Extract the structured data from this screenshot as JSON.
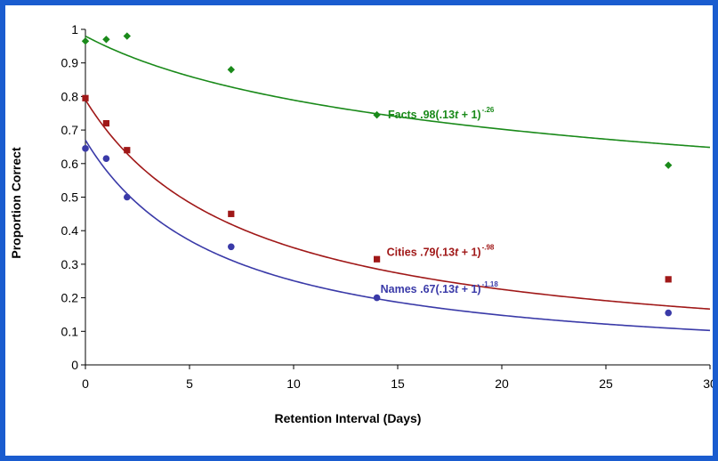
{
  "chart_data": {
    "type": "scatter",
    "title": "",
    "xlabel": "Retention Interval (Days)",
    "ylabel": "Proportion Correct",
    "xlim": [
      0,
      30
    ],
    "ylim": [
      0,
      1
    ],
    "xticks": [
      0,
      5,
      10,
      15,
      20,
      25,
      30
    ],
    "yticks": [
      0,
      0.1,
      0.2,
      0.3,
      0.4,
      0.5,
      0.6,
      0.7,
      0.8,
      0.9,
      1
    ],
    "xtick_labels": [
      "0",
      "5",
      "10",
      "15",
      "20",
      "25",
      "30"
    ],
    "ytick_labels": [
      "0",
      "0.1",
      "0.2",
      "0.3",
      "0.4",
      "0.5",
      "0.6",
      "0.7",
      "0.8",
      "0.9",
      "1"
    ],
    "grid": false,
    "legend": "none",
    "series": [
      {
        "name": "Facts",
        "color": "#1a8a1a",
        "marker": "diamond",
        "x": [
          0,
          1,
          2,
          7,
          14,
          28
        ],
        "y": [
          0.965,
          0.97,
          0.98,
          0.88,
          0.745,
          0.595
        ],
        "fit": {
          "a": 0.98,
          "b": 0.13,
          "p": 0.26
        },
        "label_name": "Facts",
        "label_eq_prefix": ".98(.13",
        "label_eq_var": "t",
        "label_eq_suffix": " + 1)",
        "label_exp": "-.26",
        "label_at": {
          "x": 19,
          "y": 0.735
        }
      },
      {
        "name": "Cities",
        "color": "#a01818",
        "marker": "square",
        "x": [
          0,
          1,
          2,
          7,
          14,
          28
        ],
        "y": [
          0.795,
          0.72,
          0.64,
          0.45,
          0.315,
          0.255
        ],
        "fit": {
          "a": 0.79,
          "b": 0.13,
          "p": 0.98
        },
        "label_name": "Cities",
        "label_eq_prefix": ".79(.13",
        "label_eq_var": "t",
        "label_eq_suffix": " + 1)",
        "label_exp": "-.98",
        "label_at": {
          "x": 19,
          "y": 0.325
        }
      },
      {
        "name": "Names",
        "color": "#3a3aa8",
        "marker": "circle",
        "x": [
          0,
          1,
          2,
          7,
          14,
          28
        ],
        "y": [
          0.645,
          0.615,
          0.5,
          0.352,
          0.2,
          0.155
        ],
        "fit": {
          "a": 0.67,
          "b": 0.13,
          "p": 1.18
        },
        "label_name": "Names",
        "label_eq_prefix": ".67(.13",
        "label_eq_var": "t",
        "label_eq_suffix": " + 1)",
        "label_exp": "-1.18",
        "label_at": {
          "x": 19,
          "y": 0.215
        }
      }
    ]
  }
}
